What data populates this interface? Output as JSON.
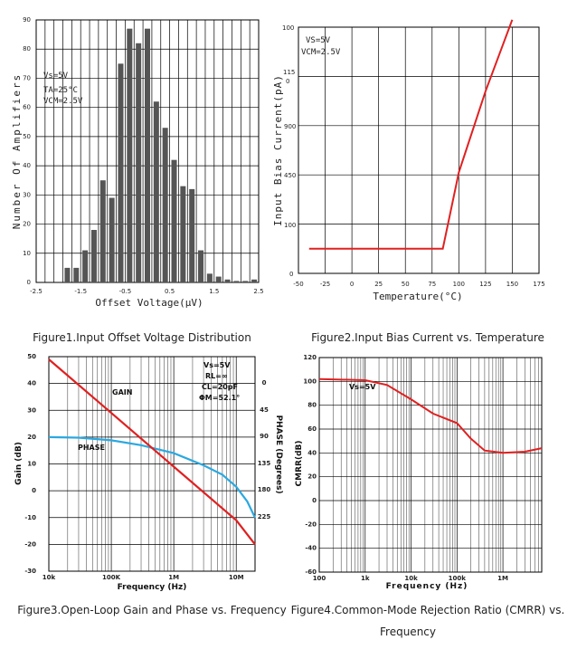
{
  "colors": {
    "bar": "#555555",
    "red": "#e02020",
    "blue": "#2aa8e0",
    "grid": "#555555"
  },
  "captions": {
    "fig1": "Figure1.Input Offset Voltage Distribution",
    "fig2": "Figure2.Input Bias Current vs. Temperature",
    "fig3": "Figure3.Open-Loop Gain and Phase vs. Frequency",
    "fig4_line1": "Figure4.Common-Mode Rejection Ratio (CMRR) vs.",
    "fig4_line2": "Frequency"
  },
  "chart_data": [
    {
      "type": "bar",
      "xlabel": "Offset Voltage(μV)",
      "ylabel": "Number Of Amplifiers",
      "xlim": [
        -2.5,
        2.5
      ],
      "ylim": [
        0,
        90
      ],
      "xticks": [
        "-2.5",
        "-1.5",
        "-0.5",
        "0.5",
        "1.5",
        "2.5"
      ],
      "yticks": [
        "0",
        "10",
        "20",
        "30",
        "40",
        "50",
        "60",
        "70",
        "80",
        "90"
      ],
      "conditions": [
        "Vs=5V",
        "TA=25°C",
        "VCM=2.5V"
      ],
      "x": [
        -1.8,
        -1.6,
        -1.4,
        -1.2,
        -1.0,
        -0.8,
        -0.6,
        -0.4,
        -0.2,
        0.0,
        0.2,
        0.4,
        0.6,
        0.8,
        1.0,
        1.2,
        1.4,
        1.6,
        1.8,
        2.0,
        2.2,
        2.4
      ],
      "values": [
        5,
        5,
        11,
        18,
        35,
        29,
        75,
        87,
        82,
        87,
        62,
        53,
        42,
        33,
        32,
        11,
        3,
        2,
        1,
        0.5,
        0.5,
        1
      ]
    },
    {
      "type": "line",
      "xlabel": "Temperature(°C)",
      "ylabel": "Input Bias Current(pA)",
      "xticks": [
        "-50",
        "-25",
        "0",
        "25",
        "50",
        "75",
        "100",
        "125",
        "150",
        "175"
      ],
      "yticks": [
        "0",
        "100",
        "450",
        "900",
        "115\n0",
        "100"
      ],
      "xlim": [
        -50,
        175
      ],
      "conditions": [
        "VS=5V",
        "VCM=2.5V"
      ],
      "series": [
        {
          "x": [
            -40,
            85,
            100,
            125,
            150
          ],
          "y_label_level": [
            0.5,
            0.5,
            2.05,
            3.7,
            5.15
          ]
        }
      ]
    },
    {
      "type": "line",
      "xlabel": "Frequency (Hz)",
      "ylabel": "Gain (dB)",
      "y2label": "PHASE (Degrees)",
      "xticks": [
        "10k",
        "100K",
        "1M",
        "10M"
      ],
      "yticks": [
        "-30",
        "-20",
        "-10",
        "0",
        "10",
        "20",
        "30",
        "40",
        "50"
      ],
      "y2ticks": [
        "0",
        "45",
        "90",
        "135",
        "180",
        "225"
      ],
      "ylim": [
        -30,
        50
      ],
      "conditions": [
        "Vs=5V",
        "RL=∞",
        "CL=20pF",
        "ΦM=52.1°"
      ],
      "series": [
        {
          "name": "GAIN",
          "x": [
            10000,
            100000,
            1000000,
            10000000,
            20000000
          ],
          "y": [
            49,
            29,
            9,
            -11,
            -20
          ]
        },
        {
          "name": "PHASE",
          "x": [
            10000,
            30000,
            100000,
            300000,
            1000000,
            3000000,
            6000000,
            10000000,
            15000000,
            20000000
          ],
          "y": [
            20,
            19.8,
            18.8,
            17,
            14,
            9.5,
            6,
            1.5,
            -4,
            -10
          ]
        }
      ]
    },
    {
      "type": "line",
      "xlabel": "Frequency (Hz)",
      "ylabel": "CMRR(dB)",
      "xticks": [
        "100",
        "1k",
        "10k",
        "100k",
        "1M"
      ],
      "yticks": [
        "-60",
        "-40",
        "-20",
        "0",
        "20",
        "40",
        "60",
        "80",
        "100",
        "120"
      ],
      "ylim": [
        -60,
        120
      ],
      "conditions": [
        "Vs=5V"
      ],
      "series": [
        {
          "x": [
            100,
            1000,
            3000,
            10000,
            30000,
            100000,
            200000,
            400000,
            1000000,
            3000000,
            7000000
          ],
          "y": [
            102,
            101,
            97,
            85,
            73,
            65,
            52,
            42,
            40,
            41,
            44
          ]
        }
      ]
    }
  ]
}
